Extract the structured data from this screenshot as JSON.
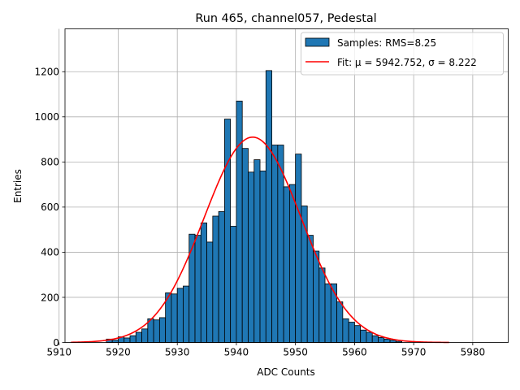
{
  "chart_data": {
    "type": "bar",
    "title": "Run 465, channel057, Pedestal",
    "xlabel": "ADC Counts",
    "ylabel": "Entries",
    "xlim": [
      5911,
      5986
    ],
    "ylim": [
      0,
      1390
    ],
    "x_ticks": [
      5910,
      5920,
      5930,
      5940,
      5950,
      5960,
      5970,
      5980
    ],
    "y_ticks": [
      0,
      200,
      400,
      600,
      800,
      1000,
      1200
    ],
    "grid": true,
    "legend_position": "top-right",
    "colors": {
      "bars": "#1f77b4",
      "bar_edge": "#000000",
      "fit": "#ff0000",
      "grid": "#b0b0b0"
    },
    "histogram": {
      "name": "Samples: RMS=8.25",
      "bin_start": 5912,
      "bin_width": 1,
      "counts": [
        0,
        0,
        0,
        0,
        0,
        0,
        15,
        10,
        25,
        20,
        30,
        45,
        60,
        105,
        100,
        110,
        220,
        215,
        240,
        250,
        480,
        475,
        530,
        445,
        560,
        580,
        990,
        515,
        1070,
        860,
        755,
        810,
        760,
        1205,
        875,
        875,
        690,
        700,
        835,
        605,
        475,
        405,
        330,
        260,
        260,
        180,
        105,
        90,
        75,
        55,
        45,
        30,
        22,
        15,
        10,
        5,
        0,
        0,
        0,
        0,
        0,
        0,
        0,
        0,
        0,
        0
      ]
    },
    "fit": {
      "name": "Fit: μ = 5942.752, σ = 8.222",
      "x_start": 5912,
      "x_end": 5976,
      "mu": 5942.752,
      "sigma": 8.222,
      "amplitude": 910
    }
  }
}
